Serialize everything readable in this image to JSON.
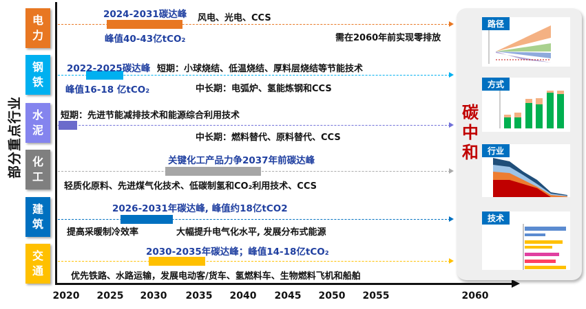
{
  "side_label": "部分重点行业",
  "sectors": [
    {
      "name": [
        "电",
        "力"
      ],
      "color": "#E87722"
    },
    {
      "name": [
        "钢",
        "铁"
      ],
      "color": "#00B0F0"
    },
    {
      "name": [
        "水",
        "泥"
      ],
      "color": "#8080F0"
    },
    {
      "name": [
        "化",
        "工"
      ],
      "color": "#7F7F7F"
    },
    {
      "name": [
        "建",
        "筑"
      ],
      "color": "#0070C0"
    },
    {
      "name": [
        "交",
        "通"
      ],
      "color": "#FFC000"
    }
  ],
  "rows": {
    "power": {
      "peak": "2024-2031碳达峰",
      "value": "峰值40-43亿tCO₂",
      "tech": "风电、光电、CCS",
      "note": "需在2060年前实现零排放",
      "peak_range": [
        2024,
        2031
      ]
    },
    "steel": {
      "peak": "2022-2025碳达峰",
      "value": "峰值16-18 亿tCO₂",
      "short": "短期：小球烧结、低温烧结、厚料层烧结等节能技术",
      "long": "中长期：电弧炉、氢能炼钢和CCS",
      "peak_range": [
        2022,
        2025
      ]
    },
    "cement": {
      "short": "短期：先进节能减排技术和能源综合利用技术",
      "long": "中长期：燃料替代、原料替代、CCS",
      "peak_range": [
        2020,
        2021
      ]
    },
    "chemical": {
      "peak": "关键化工产品力争2037年前碳达峰",
      "tech": "轻质化原料、先进煤气化技术、低碳制氢和CO₂利用技术、CCS"
    },
    "building": {
      "peak": "2026-2031年碳达峰, 峰值约18亿tCO2",
      "tech1": "提高采暖制冷效率",
      "tech2": "大幅提升电气化水平, 发展分布式能源",
      "peak_range": [
        2026,
        2031
      ]
    },
    "transport": {
      "peak": "2030-2035年碳达峰；峰值14-18亿tCO₂",
      "tech": "优先铁路、水路运输，发展电动客/货车、氢燃料车、生物燃料飞机和船舶",
      "peak_range": [
        2030,
        2035
      ]
    }
  },
  "years": [
    "2020",
    "2025",
    "2030",
    "2035",
    "2040",
    "2045",
    "2050",
    "2055",
    "2060"
  ],
  "panel": {
    "title": [
      "碳",
      "中",
      "和"
    ],
    "thumbs": [
      "路径",
      "方式",
      "行业",
      "技术"
    ]
  }
}
